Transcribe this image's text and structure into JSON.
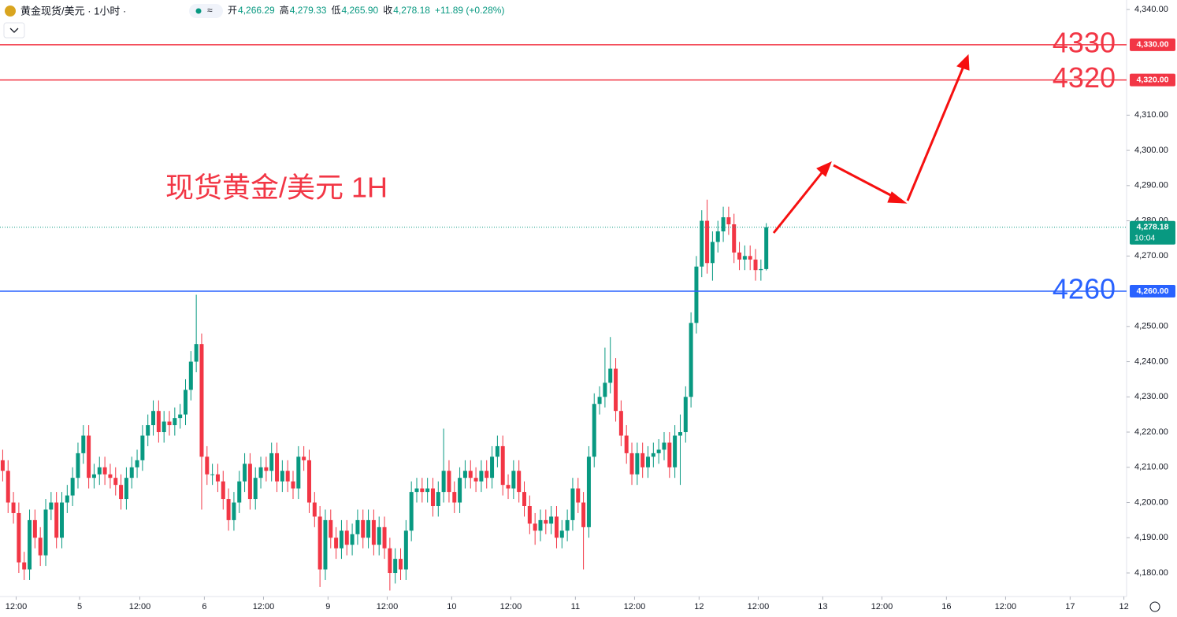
{
  "header": {
    "symbol": "黄金现货/美元 · 1小时 ·",
    "fields": [
      {
        "label": "开",
        "value": "4,266.29"
      },
      {
        "label": "高",
        "value": "4,279.33"
      },
      {
        "label": "低",
        "value": "4,265.90"
      },
      {
        "label": "收",
        "value": "4,278.18"
      }
    ],
    "change": "+11.89 (+0.28%)"
  },
  "chart_data": {
    "type": "candlestick",
    "annotation": "现货黄金/美元 1H",
    "up_color": "#089981",
    "down_color": "#f23645",
    "open": [
      4212,
      4209,
      4200,
      4197,
      4183,
      4181,
      4195,
      4190,
      4185,
      4198,
      4200,
      4190,
      4200,
      4202,
      4207,
      4214,
      4219,
      4207,
      4208,
      4210,
      4208,
      4207,
      4205,
      4201,
      4207,
      4210,
      4212,
      4219,
      4222,
      4226,
      4220,
      4223,
      4222,
      4224,
      4225,
      4232,
      4240,
      4245,
      4213,
      4208,
      4208,
      4206,
      4201,
      4195,
      4200,
      4206,
      4211,
      4201,
      4207,
      4210,
      4209,
      4214,
      4206,
      4209,
      4206,
      4204,
      4213,
      4212,
      4200,
      4196,
      4181,
      4195,
      4190,
      4187,
      4192,
      4188,
      4191,
      4195,
      4190,
      4195,
      4188,
      4193,
      4187,
      4180,
      4184,
      4181,
      4192,
      4203,
      4204,
      4203,
      4204,
      4199,
      4203,
      4209,
      4203,
      4200,
      4207,
      4209,
      4207,
      4206,
      4209,
      4207,
      4213,
      4216,
      4205,
      4204,
      4209,
      4203,
      4199,
      4194,
      4192,
      4195,
      4194,
      4196,
      4190,
      4192,
      4195,
      4204,
      4200,
      4193,
      4213,
      4228,
      4230,
      4234,
      4238,
      4226,
      4219,
      4214,
      4208,
      4214,
      4210,
      4213,
      4214,
      4215,
      4217,
      4210,
      4219,
      4220,
      4230,
      4251,
      4267,
      4280,
      4268,
      4274,
      4277,
      4281,
      4279,
      4271,
      4269,
      4270,
      4269,
      4266,
      4266.29
    ],
    "high": [
      4215,
      4212,
      4203,
      4200,
      4186,
      4198,
      4198,
      4193,
      4201,
      4203,
      4203,
      4203,
      4205,
      4210,
      4217,
      4222,
      4222,
      4211,
      4213,
      4213,
      4211,
      4210,
      4208,
      4210,
      4213,
      4215,
      4222,
      4225,
      4229,
      4229,
      4226,
      4226,
      4227,
      4228,
      4235,
      4243,
      4259,
      4248,
      4216,
      4211,
      4211,
      4209,
      4204,
      4203,
      4209,
      4214,
      4214,
      4210,
      4213,
      4213,
      4217,
      4217,
      4212,
      4212,
      4209,
      4216,
      4216,
      4215,
      4203,
      4199,
      4198,
      4198,
      4193,
      4195,
      4195,
      4194,
      4198,
      4198,
      4198,
      4198,
      4196,
      4196,
      4190,
      4187,
      4187,
      4195,
      4206,
      4207,
      4207,
      4207,
      4207,
      4206,
      4221,
      4212,
      4206,
      4210,
      4212,
      4212,
      4210,
      4212,
      4212,
      4216,
      4219,
      4219,
      4208,
      4212,
      4212,
      4206,
      4202,
      4197,
      4198,
      4198,
      4199,
      4199,
      4195,
      4198,
      4207,
      4207,
      4203,
      4216,
      4231,
      4233,
      4244,
      4247,
      4241,
      4229,
      4222,
      4217,
      4217,
      4217,
      4216,
      4217,
      4218,
      4220,
      4220,
      4222,
      4225,
      4233,
      4254,
      4270,
      4283,
      4286,
      4277,
      4280,
      4284,
      4284,
      4282,
      4274,
      4273,
      4273,
      4272,
      4269,
      4279.33
    ],
    "low": [
      4206,
      4197,
      4194,
      4180,
      4178,
      4178,
      4187,
      4182,
      4182,
      4195,
      4187,
      4187,
      4197,
      4199,
      4204,
      4211,
      4204,
      4204,
      4205,
      4205,
      4204,
      4202,
      4198,
      4198,
      4204,
      4207,
      4209,
      4216,
      4219,
      4217,
      4217,
      4219,
      4219,
      4221,
      4222,
      4229,
      4237,
      4198,
      4205,
      4205,
      4203,
      4198,
      4192,
      4192,
      4197,
      4203,
      4198,
      4198,
      4204,
      4206,
      4206,
      4203,
      4203,
      4203,
      4201,
      4201,
      4209,
      4197,
      4193,
      4176,
      4178,
      4187,
      4184,
      4184,
      4185,
      4185,
      4188,
      4187,
      4187,
      4185,
      4185,
      4184,
      4175,
      4177,
      4178,
      4178,
      4189,
      4200,
      4200,
      4200,
      4196,
      4196,
      4200,
      4200,
      4197,
      4197,
      4204,
      4204,
      4203,
      4203,
      4204,
      4204,
      4210,
      4202,
      4201,
      4201,
      4200,
      4196,
      4191,
      4188,
      4189,
      4191,
      4191,
      4187,
      4187,
      4189,
      4192,
      4197,
      4181,
      4190,
      4210,
      4225,
      4227,
      4231,
      4223,
      4216,
      4211,
      4205,
      4205,
      4207,
      4207,
      4210,
      4211,
      4212,
      4207,
      4207,
      4205,
      4217,
      4227,
      4248,
      4264,
      4265,
      4263,
      4271,
      4274,
      4276,
      4268,
      4266,
      4266,
      4266,
      4263,
      4263,
      4265.9
    ],
    "close": [
      4209,
      4200,
      4197,
      4183,
      4181,
      4195,
      4190,
      4185,
      4198,
      4200,
      4190,
      4200,
      4202,
      4207,
      4214,
      4219,
      4207,
      4208,
      4210,
      4208,
      4207,
      4205,
      4201,
      4207,
      4210,
      4212,
      4219,
      4222,
      4226,
      4220,
      4223,
      4222,
      4224,
      4225,
      4232,
      4240,
      4245,
      4213,
      4208,
      4208,
      4206,
      4201,
      4195,
      4200,
      4206,
      4211,
      4201,
      4207,
      4210,
      4209,
      4214,
      4206,
      4209,
      4206,
      4204,
      4213,
      4212,
      4200,
      4196,
      4181,
      4195,
      4190,
      4187,
      4192,
      4188,
      4191,
      4195,
      4190,
      4195,
      4188,
      4193,
      4187,
      4180,
      4184,
      4181,
      4192,
      4203,
      4204,
      4203,
      4204,
      4199,
      4203,
      4209,
      4203,
      4200,
      4207,
      4209,
      4207,
      4206,
      4209,
      4207,
      4213,
      4216,
      4205,
      4204,
      4209,
      4203,
      4199,
      4194,
      4192,
      4195,
      4194,
      4196,
      4190,
      4192,
      4195,
      4204,
      4200,
      4193,
      4213,
      4228,
      4230,
      4234,
      4238,
      4226,
      4219,
      4214,
      4208,
      4214,
      4210,
      4213,
      4214,
      4215,
      4217,
      4210,
      4219,
      4220,
      4230,
      4251,
      4267,
      4280,
      4268,
      4274,
      4277,
      4281,
      4279,
      4271,
      4269,
      4270,
      4269,
      4266,
      4266.29,
      4278.18
    ],
    "ylim": [
      4173.3,
      4342.7
    ],
    "yticks": [
      {
        "value": 4180,
        "label": "4,180.00"
      },
      {
        "value": 4190,
        "label": "4,190.00"
      },
      {
        "value": 4200,
        "label": "4,200.00"
      },
      {
        "value": 4210,
        "label": "4,210.00"
      },
      {
        "value": 4220,
        "label": "4,220.00"
      },
      {
        "value": 4230,
        "label": "4,230.00"
      },
      {
        "value": 4240,
        "label": "4,240.00"
      },
      {
        "value": 4250,
        "label": "4,250.00"
      },
      {
        "value": 4270,
        "label": "4,270.00"
      },
      {
        "value": 4280,
        "label": "4,280.00"
      },
      {
        "value": 4290,
        "label": "4,290.00"
      },
      {
        "value": 4300,
        "label": "4,300.00"
      },
      {
        "value": 4310,
        "label": "4,310.00"
      },
      {
        "value": 4340,
        "label": "4,340.00"
      }
    ],
    "xlim": [
      -0.5,
      209
    ],
    "xticks": [
      {
        "value": 2.5,
        "label": "12:00"
      },
      {
        "value": 14.3,
        "label": "5"
      },
      {
        "value": 25.5,
        "label": "12:00"
      },
      {
        "value": 37.5,
        "label": "6"
      },
      {
        "value": 48.5,
        "label": "12:00"
      },
      {
        "value": 60.5,
        "label": "9"
      },
      {
        "value": 71.5,
        "label": "12:00"
      },
      {
        "value": 83.5,
        "label": "10"
      },
      {
        "value": 94.5,
        "label": "12:00"
      },
      {
        "value": 106.5,
        "label": "11"
      },
      {
        "value": 117.5,
        "label": "12:00"
      },
      {
        "value": 129.5,
        "label": "12"
      },
      {
        "value": 140.5,
        "label": "12:00"
      },
      {
        "value": 152.5,
        "label": "13"
      },
      {
        "value": 163.5,
        "label": "12:00"
      },
      {
        "value": 175.5,
        "label": "16"
      },
      {
        "value": 186.5,
        "label": "12:00"
      },
      {
        "value": 198.5,
        "label": "17"
      },
      {
        "value": 208.5,
        "label": "12"
      }
    ],
    "levels": [
      {
        "value": 4330,
        "label": "4330",
        "tag": "4,330.00",
        "color": "#f23645"
      },
      {
        "value": 4320,
        "label": "4320",
        "tag": "4,320.00",
        "color": "#f23645"
      },
      {
        "value": 4260,
        "label": "4260",
        "tag": "4,260.00",
        "color": "#2962ff"
      }
    ],
    "last_price": {
      "value": 4278.18,
      "label": "4,278.18",
      "countdown": "10:04",
      "color": "#089981"
    }
  }
}
